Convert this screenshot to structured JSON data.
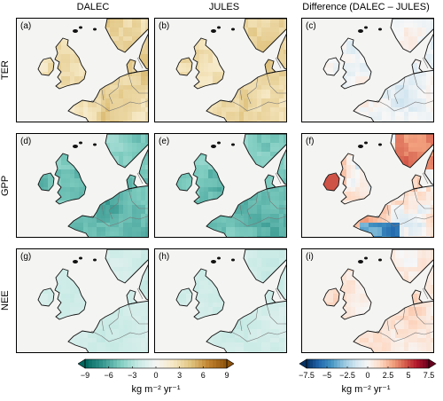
{
  "columns": [
    "DALEC",
    "JULES",
    "Difference (DALEC – JULES)"
  ],
  "rows": [
    "TER",
    "GPP",
    "NEE"
  ],
  "panels": [
    {
      "label": "(a)",
      "row": "TER",
      "column": "DALEC",
      "palette": "ter"
    },
    {
      "label": "(b)",
      "row": "TER",
      "column": "JULES",
      "palette": "ter"
    },
    {
      "label": "(c)",
      "row": "TER",
      "column": "Difference",
      "palette": "diff-ter"
    },
    {
      "label": "(d)",
      "row": "GPP",
      "column": "DALEC",
      "palette": "gpp"
    },
    {
      "label": "(e)",
      "row": "GPP",
      "column": "JULES",
      "palette": "gpp"
    },
    {
      "label": "(f)",
      "row": "GPP",
      "column": "Difference",
      "palette": "diff-gpp"
    },
    {
      "label": "(g)",
      "row": "NEE",
      "column": "DALEC",
      "palette": "nee"
    },
    {
      "label": "(h)",
      "row": "NEE",
      "column": "JULES",
      "palette": "nee"
    },
    {
      "label": "(i)",
      "row": "NEE",
      "column": "Difference",
      "palette": "diff-nee"
    }
  ],
  "colorbars": {
    "left": {
      "ticks": [
        "−9",
        "−6",
        "−3",
        "0",
        "3",
        "6",
        "9"
      ],
      "range": [
        -9,
        9
      ],
      "colors": [
        "#01665e",
        "#35978f",
        "#80cdc1",
        "#c7eae5",
        "#f5f5f5",
        "#f6e8c3",
        "#dfc27d",
        "#bf812d",
        "#8c510a"
      ],
      "unit": "kg m⁻² yr⁻¹"
    },
    "right": {
      "ticks": [
        "−7.5",
        "−5",
        "−2.5",
        "0",
        "2.5",
        "5",
        "7.5"
      ],
      "range": [
        -7.5,
        7.5
      ],
      "colors": [
        "#053061",
        "#2166ac",
        "#4393c3",
        "#92c5de",
        "#d1e5f0",
        "#f7f7f7",
        "#fddbc7",
        "#f4a582",
        "#d6604d",
        "#b2182b",
        "#67001f"
      ],
      "unit": "kg m⁻² yr⁻¹"
    }
  }
}
